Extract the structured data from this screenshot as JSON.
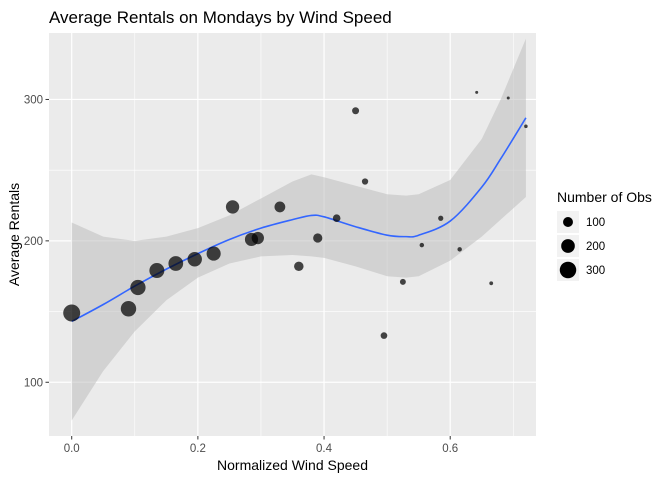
{
  "chart_data": {
    "type": "scatter",
    "title": "Average Rentals on Mondays by Wind Speed",
    "xlabel": "Normalized Wind Speed",
    "ylabel": "Average Rentals",
    "xlim": [
      -0.036,
      0.736
    ],
    "ylim": [
      62,
      347
    ],
    "x_ticks": [
      0.0,
      0.2,
      0.4,
      0.6
    ],
    "x_tick_labels": [
      "0.0",
      "0.2",
      "0.4",
      "0.6"
    ],
    "y_ticks": [
      100,
      200,
      300
    ],
    "y_tick_labels": [
      "100",
      "200",
      "300"
    ],
    "grid": true,
    "panel_background": "#ebebeb",
    "point_color": "#000000",
    "smooth_color": "#3366ff",
    "ribbon_color": "#bebebe",
    "legend": {
      "title": "Number of Obs",
      "position": "right",
      "entries": [
        {
          "label": "100",
          "value": 100
        },
        {
          "label": "200",
          "value": 200
        },
        {
          "label": "300",
          "value": 300
        }
      ]
    },
    "size_domain": [
      5,
      320
    ],
    "size_range_px": [
      1.5,
      8.5
    ],
    "points": [
      {
        "x": 0.0,
        "y": 149,
        "n": 320
      },
      {
        "x": 0.09,
        "y": 152,
        "n": 260
      },
      {
        "x": 0.105,
        "y": 167,
        "n": 255
      },
      {
        "x": 0.135,
        "y": 179,
        "n": 245
      },
      {
        "x": 0.165,
        "y": 184,
        "n": 235
      },
      {
        "x": 0.195,
        "y": 187,
        "n": 225
      },
      {
        "x": 0.225,
        "y": 191,
        "n": 215
      },
      {
        "x": 0.255,
        "y": 224,
        "n": 190
      },
      {
        "x": 0.285,
        "y": 201,
        "n": 185
      },
      {
        "x": 0.295,
        "y": 202,
        "n": 160
      },
      {
        "x": 0.33,
        "y": 224,
        "n": 120
      },
      {
        "x": 0.36,
        "y": 182,
        "n": 90
      },
      {
        "x": 0.39,
        "y": 202,
        "n": 85
      },
      {
        "x": 0.42,
        "y": 216,
        "n": 55
      },
      {
        "x": 0.45,
        "y": 292,
        "n": 45
      },
      {
        "x": 0.465,
        "y": 242,
        "n": 35
      },
      {
        "x": 0.495,
        "y": 133,
        "n": 40
      },
      {
        "x": 0.525,
        "y": 171,
        "n": 30
      },
      {
        "x": 0.555,
        "y": 197,
        "n": 15
      },
      {
        "x": 0.585,
        "y": 216,
        "n": 22
      },
      {
        "x": 0.615,
        "y": 194,
        "n": 15
      },
      {
        "x": 0.642,
        "y": 305,
        "n": 5
      },
      {
        "x": 0.665,
        "y": 170,
        "n": 10
      },
      {
        "x": 0.692,
        "y": 301,
        "n": 5
      },
      {
        "x": 0.72,
        "y": 281,
        "n": 8
      }
    ],
    "smooth": [
      {
        "x": 0.0,
        "y": 143,
        "lo": 73,
        "hi": 213
      },
      {
        "x": 0.05,
        "y": 155,
        "lo": 108,
        "hi": 203
      },
      {
        "x": 0.1,
        "y": 168,
        "lo": 136,
        "hi": 200
      },
      {
        "x": 0.15,
        "y": 180,
        "lo": 158,
        "hi": 203
      },
      {
        "x": 0.2,
        "y": 191,
        "lo": 174,
        "hi": 209
      },
      {
        "x": 0.25,
        "y": 201,
        "lo": 184,
        "hi": 218
      },
      {
        "x": 0.3,
        "y": 209,
        "lo": 189,
        "hi": 230
      },
      {
        "x": 0.35,
        "y": 215,
        "lo": 190,
        "hi": 242
      },
      {
        "x": 0.38,
        "y": 218,
        "lo": 189,
        "hi": 247
      },
      {
        "x": 0.4,
        "y": 217,
        "lo": 188,
        "hi": 245
      },
      {
        "x": 0.45,
        "y": 210,
        "lo": 182,
        "hi": 239
      },
      {
        "x": 0.5,
        "y": 204,
        "lo": 175,
        "hi": 233
      },
      {
        "x": 0.53,
        "y": 203,
        "lo": 174,
        "hi": 232
      },
      {
        "x": 0.55,
        "y": 204,
        "lo": 175,
        "hi": 233
      },
      {
        "x": 0.6,
        "y": 214,
        "lo": 186,
        "hi": 243
      },
      {
        "x": 0.65,
        "y": 238,
        "lo": 203,
        "hi": 272
      },
      {
        "x": 0.68,
        "y": 258,
        "lo": 215,
        "hi": 300
      },
      {
        "x": 0.72,
        "y": 287,
        "lo": 231,
        "hi": 343
      }
    ]
  }
}
